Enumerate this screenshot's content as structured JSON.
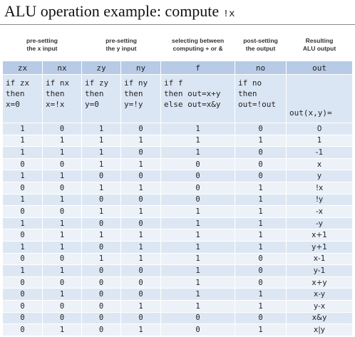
{
  "title": {
    "text": "ALU operation example: compute ",
    "code": "!x"
  },
  "groups": [
    "pre-setting\nthe x input",
    "pre-setting\nthe y input",
    "selecting between\ncomputing + or &",
    "post-setting\nthe output",
    "Resulting\nALU output"
  ],
  "headers": [
    "zx",
    "nx",
    "zy",
    "ny",
    "f",
    "no",
    "out"
  ],
  "descriptions": [
    "if zx\nthen\nx=0",
    "if nx\nthen\nx=!x",
    "if zy\nthen\ny=0",
    "if ny\nthen\ny=!y",
    "if f\nthen out=x+y\nelse out=x&y",
    "if no\nthen\nout=!out",
    "out(x,y)="
  ],
  "rows": [
    [
      "1",
      "0",
      "1",
      "0",
      "1",
      "0",
      "0"
    ],
    [
      "1",
      "1",
      "1",
      "1",
      "1",
      "1",
      "1"
    ],
    [
      "1",
      "1",
      "1",
      "0",
      "1",
      "0",
      "-1"
    ],
    [
      "0",
      "0",
      "1",
      "1",
      "0",
      "0",
      "x"
    ],
    [
      "1",
      "1",
      "0",
      "0",
      "0",
      "0",
      "y"
    ],
    [
      "0",
      "0",
      "1",
      "1",
      "0",
      "1",
      "!x"
    ],
    [
      "1",
      "1",
      "0",
      "0",
      "0",
      "1",
      "!y"
    ],
    [
      "0",
      "0",
      "1",
      "1",
      "1",
      "1",
      "-x"
    ],
    [
      "1",
      "1",
      "0",
      "0",
      "1",
      "1",
      "-y"
    ],
    [
      "0",
      "1",
      "1",
      "1",
      "1",
      "1",
      "x+1"
    ],
    [
      "1",
      "1",
      "0",
      "1",
      "1",
      "1",
      "y+1"
    ],
    [
      "0",
      "0",
      "1",
      "1",
      "1",
      "0",
      "x-1"
    ],
    [
      "1",
      "1",
      "0",
      "0",
      "1",
      "0",
      "y-1"
    ],
    [
      "0",
      "0",
      "0",
      "0",
      "1",
      "0",
      "x+y"
    ],
    [
      "0",
      "1",
      "0",
      "0",
      "1",
      "1",
      "x-y"
    ],
    [
      "0",
      "0",
      "0",
      "1",
      "1",
      "1",
      "y-x"
    ],
    [
      "0",
      "0",
      "0",
      "0",
      "0",
      "0",
      "x&y"
    ],
    [
      "0",
      "1",
      "0",
      "1",
      "0",
      "1",
      "x|y"
    ]
  ]
}
